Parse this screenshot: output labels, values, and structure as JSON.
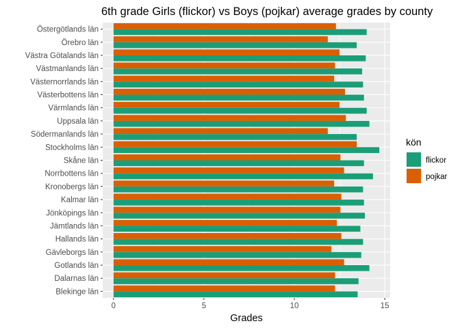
{
  "chart_data": {
    "type": "bar",
    "orientation": "horizontal",
    "title": "6th grade Girls (flickor) vs Boys (pojkar) average grades by county",
    "xlabel": "Grades",
    "ylabel": "",
    "xlim": [
      -0.6,
      15.3
    ],
    "xticks": [
      0,
      5,
      10,
      15
    ],
    "grid": true,
    "legend_title": "kön",
    "legend_position": "right",
    "categories": [
      "Östergötlands län",
      "Örebro län",
      "Västra Götalands län",
      "Västmanlands län",
      "Västernorrlands län",
      "Västerbottens län",
      "Värmlands län",
      "Uppsala län",
      "Södermanlands län",
      "Stockholms län",
      "Skåne län",
      "Norrbottens län",
      "Kronobergs län",
      "Kalmar län",
      "Jönköpings län",
      "Jämtlands län",
      "Hallands län",
      "Gävleborgs län",
      "Gotlands län",
      "Dalarnas län",
      "Blekinge län"
    ],
    "series": [
      {
        "name": "flickor",
        "color": "#1b9e77",
        "values": [
          14.0,
          13.45,
          13.95,
          13.75,
          13.8,
          13.85,
          14.0,
          14.15,
          13.45,
          14.7,
          13.85,
          14.35,
          13.8,
          13.85,
          13.9,
          13.65,
          13.8,
          13.7,
          14.15,
          13.55,
          13.5
        ]
      },
      {
        "name": "pojkar",
        "color": "#d95f02",
        "values": [
          12.3,
          11.85,
          12.5,
          12.25,
          12.2,
          12.8,
          12.5,
          12.85,
          11.85,
          13.45,
          12.55,
          12.75,
          12.2,
          12.6,
          12.55,
          12.35,
          12.6,
          12.05,
          12.75,
          12.25,
          12.25
        ]
      }
    ]
  }
}
